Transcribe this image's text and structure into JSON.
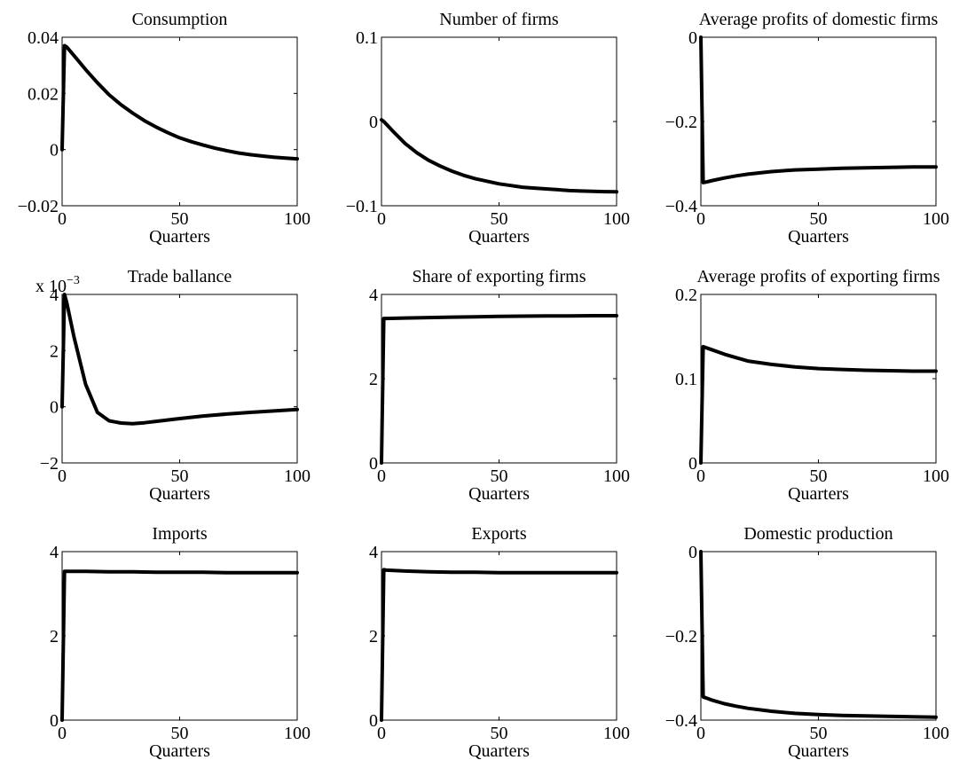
{
  "figure": {
    "background": "#ffffff",
    "line_color": "#000000"
  },
  "chart_data": [
    {
      "type": "line",
      "title": "Consumption",
      "xlabel": "Quarters",
      "ylabel": "",
      "xlim": [
        0,
        100
      ],
      "ylim": [
        -0.02,
        0.04
      ],
      "xticks": [
        0,
        50,
        100
      ],
      "xtick_labels": [
        "0",
        "50",
        "100"
      ],
      "yticks": [
        0.04,
        0.02,
        0,
        -0.02
      ],
      "ytick_labels": [
        "0.04",
        "0.02",
        "0",
        "−0.02"
      ],
      "exponent": "",
      "grid": false,
      "x": [
        0,
        1,
        2,
        5,
        10,
        15,
        20,
        25,
        30,
        35,
        40,
        45,
        50,
        55,
        60,
        65,
        70,
        75,
        80,
        85,
        90,
        95,
        100
      ],
      "y": [
        0,
        0.037,
        0.0365,
        0.0335,
        0.0285,
        0.0238,
        0.0195,
        0.016,
        0.013,
        0.0103,
        0.008,
        0.006,
        0.0042,
        0.0028,
        0.0016,
        0.0005,
        -0.0004,
        -0.0012,
        -0.0018,
        -0.0023,
        -0.0027,
        -0.003,
        -0.0033
      ]
    },
    {
      "type": "line",
      "title": "Number of firms",
      "xlabel": "Quarters",
      "ylabel": "",
      "xlim": [
        0,
        100
      ],
      "ylim": [
        -0.1,
        0.1
      ],
      "xticks": [
        0,
        50,
        100
      ],
      "xtick_labels": [
        "0",
        "50",
        "100"
      ],
      "yticks": [
        0.1,
        0,
        -0.1
      ],
      "ytick_labels": [
        "0.1",
        "0",
        "−0.1"
      ],
      "exponent": "",
      "grid": false,
      "x": [
        0,
        1,
        5,
        10,
        15,
        20,
        25,
        30,
        35,
        40,
        45,
        50,
        55,
        60,
        65,
        70,
        75,
        80,
        85,
        90,
        95,
        100
      ],
      "y": [
        0.002,
        0.0,
        -0.012,
        -0.026,
        -0.037,
        -0.046,
        -0.053,
        -0.059,
        -0.064,
        -0.068,
        -0.071,
        -0.074,
        -0.076,
        -0.078,
        -0.079,
        -0.08,
        -0.081,
        -0.082,
        -0.0825,
        -0.083,
        -0.0833,
        -0.0835
      ]
    },
    {
      "type": "line",
      "title": "Average profits of domestic firms",
      "xlabel": "Quarters",
      "ylabel": "",
      "xlim": [
        0,
        100
      ],
      "ylim": [
        -0.4,
        0
      ],
      "xticks": [
        0,
        50,
        100
      ],
      "xtick_labels": [
        "0",
        "50",
        "100"
      ],
      "yticks": [
        0,
        -0.2,
        -0.4
      ],
      "ytick_labels": [
        "0",
        "−0.2",
        "−0.4"
      ],
      "exponent": "",
      "grid": false,
      "x": [
        0,
        1,
        2,
        5,
        10,
        15,
        20,
        30,
        40,
        50,
        60,
        70,
        80,
        90,
        100
      ],
      "y": [
        0,
        -0.345,
        -0.344,
        -0.34,
        -0.334,
        -0.329,
        -0.325,
        -0.319,
        -0.315,
        -0.313,
        -0.311,
        -0.31,
        -0.309,
        -0.308,
        -0.308
      ]
    },
    {
      "type": "line",
      "title": "Trade ballance",
      "xlabel": "Quarters",
      "ylabel": "",
      "xlim": [
        0,
        100
      ],
      "ylim": [
        -2,
        4
      ],
      "xticks": [
        0,
        50,
        100
      ],
      "xtick_labels": [
        "0",
        "50",
        "100"
      ],
      "yticks": [
        4,
        2,
        0,
        -2
      ],
      "ytick_labels": [
        "4",
        "2",
        "0",
        "−2"
      ],
      "exponent": "x 10",
      "exponent_power": "−3",
      "grid": false,
      "x": [
        0,
        1,
        2,
        5,
        10,
        15,
        20,
        25,
        30,
        35,
        40,
        50,
        60,
        70,
        80,
        90,
        100
      ],
      "y": [
        0,
        4.0,
        3.7,
        2.5,
        0.8,
        -0.2,
        -0.5,
        -0.58,
        -0.6,
        -0.57,
        -0.52,
        -0.42,
        -0.33,
        -0.26,
        -0.2,
        -0.15,
        -0.1
      ]
    },
    {
      "type": "line",
      "title": "Share of exporting firms",
      "xlabel": "Quarters",
      "ylabel": "",
      "xlim": [
        0,
        100
      ],
      "ylim": [
        0,
        4
      ],
      "xticks": [
        0,
        50,
        100
      ],
      "xtick_labels": [
        "0",
        "50",
        "100"
      ],
      "yticks": [
        4,
        2,
        0
      ],
      "ytick_labels": [
        "4",
        "2",
        "0"
      ],
      "exponent": "",
      "grid": false,
      "x": [
        0,
        1,
        2,
        10,
        20,
        30,
        40,
        50,
        60,
        70,
        80,
        90,
        100
      ],
      "y": [
        0,
        3.43,
        3.43,
        3.44,
        3.45,
        3.46,
        3.47,
        3.48,
        3.485,
        3.49,
        3.49,
        3.495,
        3.495
      ]
    },
    {
      "type": "line",
      "title": "Average profits of exporting firms",
      "xlabel": "Quarters",
      "ylabel": "",
      "xlim": [
        0,
        100
      ],
      "ylim": [
        0,
        0.2
      ],
      "xticks": [
        0,
        50,
        100
      ],
      "xtick_labels": [
        "0",
        "50",
        "100"
      ],
      "yticks": [
        0.2,
        0.1,
        0
      ],
      "ytick_labels": [
        "0.2",
        "0.1",
        "0"
      ],
      "exponent": "",
      "grid": false,
      "x": [
        0,
        1,
        2,
        5,
        10,
        15,
        20,
        30,
        40,
        50,
        60,
        70,
        80,
        90,
        100
      ],
      "y": [
        0,
        0.138,
        0.137,
        0.134,
        0.129,
        0.125,
        0.121,
        0.117,
        0.114,
        0.112,
        0.111,
        0.11,
        0.1095,
        0.109,
        0.109
      ]
    },
    {
      "type": "line",
      "title": "Imports",
      "xlabel": "Quarters",
      "ylabel": "",
      "xlim": [
        0,
        100
      ],
      "ylim": [
        0,
        4
      ],
      "xticks": [
        0,
        50,
        100
      ],
      "xtick_labels": [
        "0",
        "50",
        "100"
      ],
      "yticks": [
        4,
        2,
        0
      ],
      "ytick_labels": [
        "4",
        "2",
        "0"
      ],
      "exponent": "",
      "grid": false,
      "x": [
        0,
        1,
        2,
        10,
        20,
        30,
        40,
        50,
        60,
        70,
        80,
        90,
        100
      ],
      "y": [
        0,
        3.53,
        3.53,
        3.53,
        3.52,
        3.52,
        3.51,
        3.51,
        3.51,
        3.5,
        3.5,
        3.5,
        3.5
      ]
    },
    {
      "type": "line",
      "title": "Exports",
      "xlabel": "Quarters",
      "ylabel": "",
      "xlim": [
        0,
        100
      ],
      "ylim": [
        0,
        4
      ],
      "xticks": [
        0,
        50,
        100
      ],
      "xtick_labels": [
        "0",
        "50",
        "100"
      ],
      "yticks": [
        4,
        2,
        0
      ],
      "ytick_labels": [
        "4",
        "2",
        "0"
      ],
      "exponent": "",
      "grid": false,
      "x": [
        0,
        1,
        2,
        10,
        20,
        30,
        40,
        50,
        60,
        70,
        80,
        90,
        100
      ],
      "y": [
        0,
        3.57,
        3.56,
        3.54,
        3.52,
        3.51,
        3.51,
        3.5,
        3.5,
        3.5,
        3.5,
        3.5,
        3.5
      ]
    },
    {
      "type": "line",
      "title": "Domestic production",
      "xlabel": "Quarters",
      "ylabel": "",
      "xlim": [
        0,
        100
      ],
      "ylim": [
        -0.4,
        0
      ],
      "xticks": [
        0,
        50,
        100
      ],
      "xtick_labels": [
        "0",
        "50",
        "100"
      ],
      "yticks": [
        0,
        -0.2,
        -0.4
      ],
      "ytick_labels": [
        "0",
        "−0.2",
        "−0.4"
      ],
      "exponent": "",
      "grid": false,
      "x": [
        0,
        1,
        2,
        5,
        10,
        15,
        20,
        30,
        40,
        50,
        60,
        70,
        80,
        90,
        100
      ],
      "y": [
        0,
        -0.345,
        -0.347,
        -0.353,
        -0.361,
        -0.367,
        -0.372,
        -0.379,
        -0.384,
        -0.387,
        -0.389,
        -0.39,
        -0.391,
        -0.392,
        -0.393
      ]
    }
  ]
}
